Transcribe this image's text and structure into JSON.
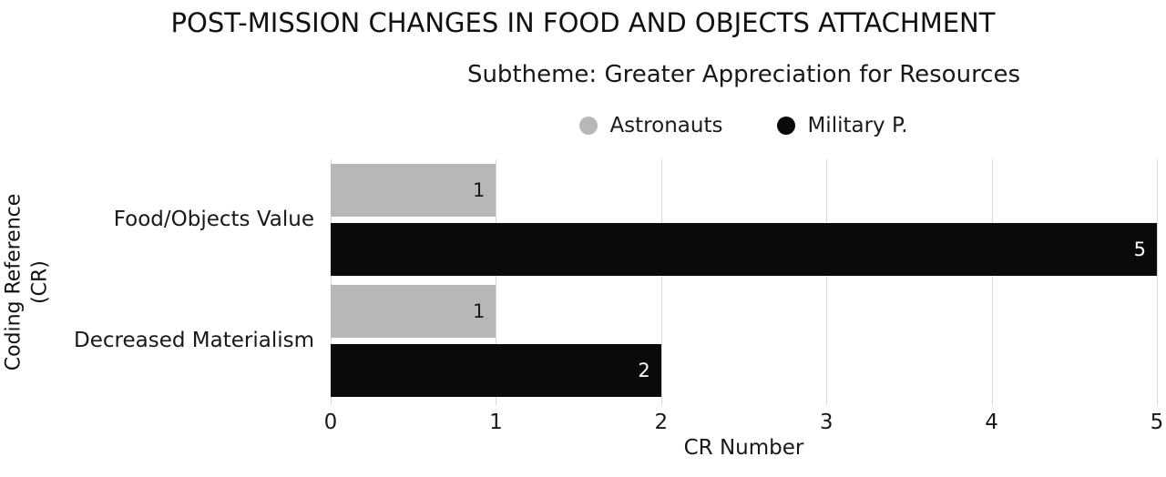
{
  "title": "POST-MISSION CHANGES IN FOOD AND OBJECTS ATTACHMENT",
  "subtitle": "Subtheme: Greater Appreciation for Resources",
  "legend": [
    {
      "label": "Astronauts",
      "color": "#b7b7b7"
    },
    {
      "label": "Military P.",
      "color": "#0a0a0a"
    }
  ],
  "ylabel_lines": [
    "Coding Reference",
    "(CR)"
  ],
  "chart_data": {
    "type": "bar",
    "orientation": "horizontal",
    "title": "POST-MISSION CHANGES IN FOOD AND OBJECTS ATTACHMENT",
    "subtitle": "Subtheme: Greater Appreciation for Resources",
    "categories": [
      "Food/Objects Value",
      "Decreased Materialism"
    ],
    "series": [
      {
        "name": "Astronauts",
        "color": "#b7b7b7",
        "label_color": "#1a1a1a",
        "values": [
          1,
          1
        ]
      },
      {
        "name": "Military P.",
        "color": "#0a0a0a",
        "label_color": "#ffffff",
        "values": [
          5,
          2
        ]
      }
    ],
    "xlabel": "CR Number",
    "ylabel": "Coding Reference (CR)",
    "xlim": [
      0,
      5
    ],
    "xticks": [
      0,
      1,
      2,
      3,
      4,
      5
    ],
    "grid": true,
    "gridline_color": "#d8d8d8",
    "legend_position": "top"
  }
}
